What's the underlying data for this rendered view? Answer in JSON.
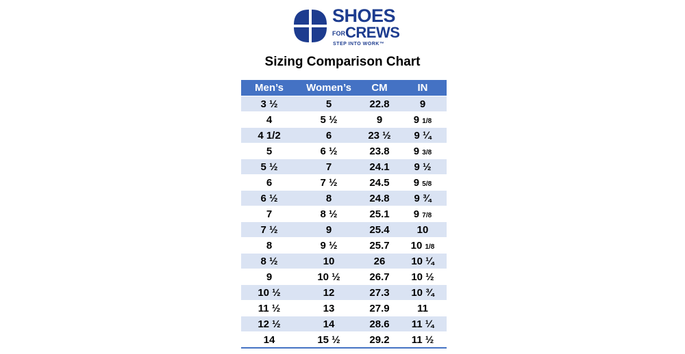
{
  "logo": {
    "line1": "SHOES",
    "line2_small": "FOR",
    "line2": "CREWS",
    "tagline": "STEP INTO WORK™",
    "color": "#1d3c8f"
  },
  "title": "Sizing Comparison Chart",
  "table": {
    "header_color": "#4472c4",
    "stripe_color": "#dae3f3",
    "headers": [
      "Men’s",
      "Women’s",
      "CM",
      "IN"
    ],
    "rows": [
      {
        "mens": "3 ½",
        "womens": "5",
        "cm": "22.8",
        "in": "9",
        "in_frac": ""
      },
      {
        "mens": "4",
        "womens": "5 ½",
        "cm": "9",
        "in": "9 ",
        "in_frac": "1/8"
      },
      {
        "mens": "4 1/2",
        "womens": "6",
        "cm": "23 ½",
        "in": "9 ¼",
        "in_frac": ""
      },
      {
        "mens": "5",
        "womens": "6 ½",
        "cm": "23.8",
        "in": "9 ",
        "in_frac": "3/8"
      },
      {
        "mens": "5 ½",
        "womens": "7",
        "cm": "24.1",
        "in": "9 ½",
        "in_frac": ""
      },
      {
        "mens": "6",
        "womens": "7 ½",
        "cm": "24.5",
        "in": "9 ",
        "in_frac": "5/8"
      },
      {
        "mens": "6 ½",
        "womens": "8",
        "cm": "24.8",
        "in": "9 ¾",
        "in_frac": ""
      },
      {
        "mens": "7",
        "womens": "8 ½",
        "cm": "25.1",
        "in": "9 ",
        "in_frac": "7/8"
      },
      {
        "mens": "7 ½",
        "womens": "9",
        "cm": "25.4",
        "in": "10",
        "in_frac": ""
      },
      {
        "mens": "8",
        "womens": "9 ½",
        "cm": "25.7",
        "in": "10 ",
        "in_frac": "1/8"
      },
      {
        "mens": "8 ½",
        "womens": "10",
        "cm": "26",
        "in": "10 ¼",
        "in_frac": ""
      },
      {
        "mens": "9",
        "womens": "10 ½",
        "cm": "26.7",
        "in": "10 ½",
        "in_frac": ""
      },
      {
        "mens": "10 ½",
        "womens": "12",
        "cm": "27.3",
        "in": "10 ¾",
        "in_frac": ""
      },
      {
        "mens": "11 ½",
        "womens": "13",
        "cm": "27.9",
        "in": "11",
        "in_frac": ""
      },
      {
        "mens": "12 ½",
        "womens": "14",
        "cm": "28.6",
        "in": "11 ¼",
        "in_frac": ""
      },
      {
        "mens": "14",
        "womens": "15 ½",
        "cm": "29.2",
        "in": "11 ½",
        "in_frac": ""
      }
    ]
  }
}
